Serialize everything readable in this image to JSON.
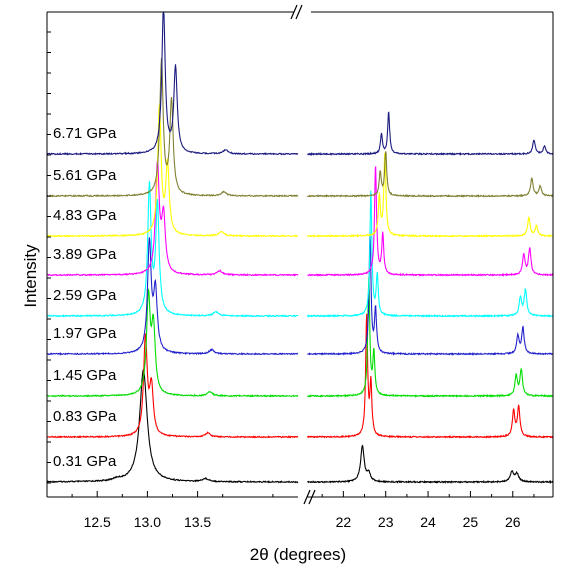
{
  "chart_data": {
    "type": "line",
    "xlabel": "2θ (degrees)",
    "ylabel": "Intensity",
    "x_axis_break": true,
    "panels": [
      {
        "name": "left",
        "xlim": [
          12.0,
          14.5
        ],
        "ticks": [
          12.5,
          13.0,
          13.5
        ],
        "tick_labels": [
          "12.5",
          "13.0",
          "13.5"
        ]
      },
      {
        "name": "right",
        "xlim": [
          21.0,
          26.95
        ],
        "ticks": [
          22,
          23,
          24,
          25,
          26
        ],
        "tick_labels": [
          "22",
          "23",
          "24",
          "25",
          "26"
        ]
      }
    ],
    "series": [
      {
        "name": "0.31 GPa",
        "color": "#000000",
        "peaks_left": [
          [
            12.96,
            112,
            0.045
          ],
          [
            13.58,
            3,
            0.04
          ],
          [
            12.7,
            2,
            0.05
          ]
        ],
        "peaks_right": [
          [
            22.45,
            36,
            0.05
          ],
          [
            22.6,
            8,
            0.05
          ],
          [
            25.98,
            10,
            0.05
          ],
          [
            26.1,
            8,
            0.05
          ]
        ]
      },
      {
        "name": "0.83 GPa",
        "color": "#ff0000",
        "peaks_left": [
          [
            12.98,
            98,
            0.022
          ],
          [
            13.04,
            48,
            0.022
          ],
          [
            13.6,
            4,
            0.03
          ]
        ],
        "peaks_right": [
          [
            22.55,
            120,
            0.028
          ],
          [
            22.65,
            52,
            0.028
          ],
          [
            26.02,
            26,
            0.035
          ],
          [
            26.14,
            30,
            0.035
          ]
        ]
      },
      {
        "name": "1.45 GPa",
        "color": "#00dd00",
        "peaks_left": [
          [
            13.01,
            96,
            0.022
          ],
          [
            13.06,
            66,
            0.022
          ],
          [
            13.62,
            4,
            0.03
          ]
        ],
        "peaks_right": [
          [
            22.6,
            116,
            0.028
          ],
          [
            22.72,
            42,
            0.028
          ],
          [
            26.08,
            20,
            0.035
          ],
          [
            26.2,
            26,
            0.035
          ]
        ]
      },
      {
        "name": "1.97 GPa",
        "color": "#2222cc",
        "peaks_left": [
          [
            13.02,
            110,
            0.022
          ],
          [
            13.08,
            60,
            0.022
          ],
          [
            13.64,
            4,
            0.03
          ]
        ],
        "peaks_right": [
          [
            22.63,
            120,
            0.028
          ],
          [
            22.76,
            44,
            0.028
          ],
          [
            26.12,
            18,
            0.035
          ],
          [
            26.24,
            26,
            0.035
          ]
        ]
      },
      {
        "name": "2.59 GPa",
        "color": "#00ffff",
        "peaks_left": [
          [
            13.02,
            128,
            0.02
          ],
          [
            13.1,
            110,
            0.02
          ],
          [
            13.68,
            4,
            0.03
          ]
        ],
        "peaks_right": [
          [
            22.65,
            124,
            0.028
          ],
          [
            22.8,
            40,
            0.028
          ],
          [
            26.18,
            18,
            0.035
          ],
          [
            26.3,
            26,
            0.035
          ]
        ]
      },
      {
        "name": "3.89 GPa",
        "color": "#ff00ff",
        "peaks_left": [
          [
            13.1,
            108,
            0.022
          ],
          [
            13.16,
            56,
            0.022
          ],
          [
            13.72,
            4,
            0.03
          ]
        ],
        "peaks_right": [
          [
            22.76,
            110,
            0.028
          ],
          [
            22.93,
            40,
            0.028
          ],
          [
            26.26,
            20,
            0.035
          ],
          [
            26.4,
            26,
            0.035
          ]
        ]
      },
      {
        "name": "4.83 GPa",
        "color": "#ffff00",
        "peaks_left": [
          [
            13.12,
            128,
            0.02
          ],
          [
            13.2,
            70,
            0.02
          ],
          [
            13.74,
            4,
            0.03
          ]
        ],
        "peaks_right": [
          [
            22.85,
            40,
            0.028
          ],
          [
            22.98,
            82,
            0.028
          ],
          [
            26.38,
            18,
            0.035
          ],
          [
            26.56,
            10,
            0.035
          ]
        ]
      },
      {
        "name": "5.61 GPa",
        "color": "#808033",
        "peaks_left": [
          [
            13.14,
            134,
            0.02
          ],
          [
            13.24,
            94,
            0.02
          ],
          [
            13.76,
            4,
            0.03
          ]
        ],
        "peaks_right": [
          [
            22.87,
            24,
            0.028
          ],
          [
            23.0,
            44,
            0.028
          ],
          [
            26.45,
            18,
            0.035
          ],
          [
            26.65,
            10,
            0.035
          ]
        ]
      },
      {
        "name": "6.71 GPa",
        "color": "#1a1a80",
        "peaks_left": [
          [
            13.16,
            146,
            0.02
          ],
          [
            13.28,
            86,
            0.02
          ],
          [
            13.78,
            4,
            0.03
          ]
        ],
        "peaks_right": [
          [
            22.9,
            20,
            0.028
          ],
          [
            23.07,
            42,
            0.028
          ],
          [
            26.5,
            14,
            0.035
          ],
          [
            26.75,
            8,
            0.035
          ]
        ]
      }
    ]
  }
}
